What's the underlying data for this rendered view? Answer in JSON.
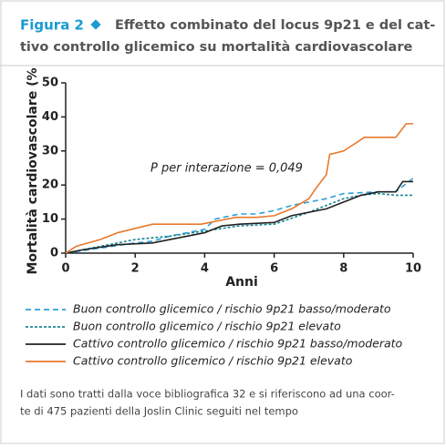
{
  "chart_data": {
    "type": "line",
    "figure_label": "Figura 2",
    "title": [
      "Effetto combinato del locus 9p21 e del cat-",
      "tivo controllo glicemico su mortalità cardiovascolare"
    ],
    "annotation": "P per interazione = 0,049",
    "x_label": "Anni",
    "y_label": "Mortalità cardiovascolare (%",
    "xlim": [
      0,
      10
    ],
    "xticks": [
      0,
      2,
      4,
      6,
      8,
      10
    ],
    "ylim": [
      0,
      50
    ],
    "yticks": [
      0,
      10,
      20,
      30,
      40,
      50
    ],
    "series": [
      {
        "name": "Buon controllo glicemico / rischio 9p21 basso/moderato",
        "color": "#2f9fd8",
        "dash": "dashed",
        "x": [
          0,
          1,
          2,
          2.5,
          3,
          4,
          4.3,
          5,
          5.5,
          6,
          6.5,
          7,
          7.5,
          8,
          9,
          9.5,
          10
        ],
        "values": [
          0,
          1.5,
          3,
          3.5,
          5,
          7,
          10,
          11.5,
          11.5,
          12.5,
          14,
          15,
          16,
          17.5,
          18,
          18,
          22
        ]
      },
      {
        "name": "Buon controllo glicemico / rischio 9p21 elevato",
        "color": "#1b8796",
        "dash": "dotted",
        "x": [
          0,
          1,
          2,
          3,
          4,
          5,
          6,
          7,
          7.5,
          8,
          8.5,
          9,
          9.5,
          10
        ],
        "values": [
          0,
          2,
          4,
          5,
          6.5,
          8,
          8.5,
          12,
          14,
          16,
          17,
          17.5,
          17,
          17
        ]
      },
      {
        "name": "Cattivo controllo glicemico / rischio 9p21 basso/moderato",
        "color": "#222222",
        "dash": "solid",
        "x": [
          0,
          0.5,
          1.5,
          2.5,
          3,
          4,
          4.5,
          5,
          6,
          6.5,
          7,
          7.5,
          8,
          8.5,
          9,
          9.5,
          9.7,
          10
        ],
        "values": [
          0,
          1,
          2.5,
          3,
          4,
          6,
          8,
          8.5,
          9,
          11,
          12,
          13,
          15,
          17,
          18,
          18,
          21,
          21
        ]
      },
      {
        "name": "Cattivo controllo glicemico / rischio 9p21 elevato",
        "color": "#e8792c",
        "dash": "solid",
        "x": [
          0,
          0.3,
          1,
          1.5,
          2.5,
          3.9,
          4.9,
          5.5,
          6,
          6.5,
          7,
          7.2,
          7.5,
          7.6,
          8,
          8.6,
          9.5,
          9.8,
          10
        ],
        "values": [
          0,
          2,
          4,
          6,
          8.5,
          8.5,
          10.5,
          10.5,
          11,
          13,
          16,
          19,
          23,
          29,
          30,
          34,
          34,
          38,
          38
        ]
      }
    ],
    "note": [
      "I dati sono tratti dalla voce bibliografica 32 e si riferiscono ad una coor-",
      "te di 475 pazienti della Joslin Clinic seguiti nel tempo"
    ]
  }
}
